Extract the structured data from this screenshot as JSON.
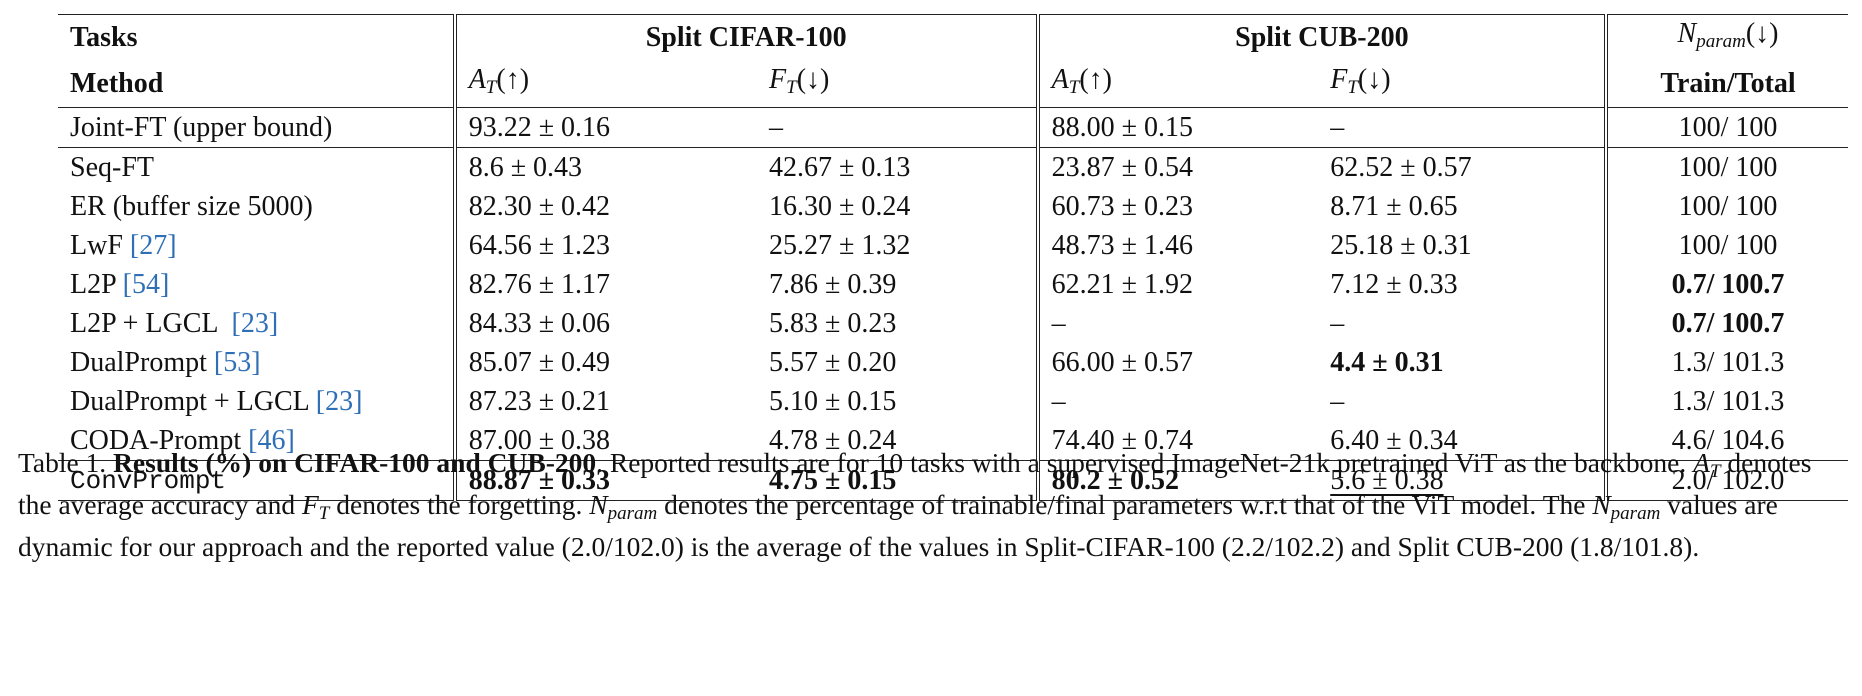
{
  "table": {
    "header1": {
      "tasks": "Tasks",
      "cifar": "Split CIFAR-100",
      "cub": "Split CUB-200",
      "nparam_base": "N",
      "nparam_sub": "param",
      "nparam_arrow": "(↓)"
    },
    "header2": {
      "method": "Method",
      "a_base": "A",
      "a_sub": "T",
      "a_arrow": "(↑)",
      "f_base": "F",
      "f_sub": "T",
      "f_arrow": "(↓)",
      "train_total": "Train/Total"
    },
    "rows": [
      {
        "method": "Joint-FT (upper bound)",
        "cite": "",
        "cifar_a": "93.22 ± 0.16",
        "cifar_f": "–",
        "cub_a": "88.00 ± 0.15",
        "cub_f": "–",
        "nparam": "100/ 100"
      },
      {
        "method": "Seq-FT",
        "cite": "",
        "cifar_a": "8.6 ± 0.43",
        "cifar_f": "42.67 ± 0.13",
        "cub_a": "23.87 ± 0.54",
        "cub_f": "62.52 ± 0.57",
        "nparam": "100/ 100"
      },
      {
        "method": "ER (buffer size 5000)",
        "cite": "",
        "cifar_a": "82.30 ± 0.42",
        "cifar_f": "16.30 ± 0.24",
        "cub_a": "60.73 ± 0.23",
        "cub_f": "8.71 ± 0.65",
        "nparam": "100/ 100"
      },
      {
        "method": "LwF ",
        "cite": "[27]",
        "cifar_a": "64.56 ± 1.23",
        "cifar_f": "25.27 ± 1.32",
        "cub_a": "48.73 ± 1.46",
        "cub_f": "25.18 ± 0.31",
        "nparam": "100/ 100"
      },
      {
        "method": "L2P ",
        "cite": "[54]",
        "cifar_a": "82.76 ± 1.17",
        "cifar_f": "7.86 ± 0.39",
        "cub_a": "62.21 ± 1.92",
        "cub_f": "7.12 ± 0.33",
        "nparam": "0.7/ 100.7"
      },
      {
        "method": "L2P + LGCL  ",
        "cite": "[23]",
        "cifar_a": "84.33 ± 0.06",
        "cifar_f": "5.83 ± 0.23",
        "cub_a": "–",
        "cub_f": "–",
        "nparam": "0.7/ 100.7"
      },
      {
        "method": "DualPrompt ",
        "cite": "[53]",
        "cifar_a": "85.07 ± 0.49",
        "cifar_f": "5.57 ± 0.20",
        "cub_a": "66.00 ± 0.57",
        "cub_f": "4.4 ± 0.31",
        "nparam": "1.3/ 101.3"
      },
      {
        "method": "DualPrompt + LGCL ",
        "cite": "[23]",
        "cifar_a": "87.23 ± 0.21",
        "cifar_f": "5.10 ± 0.15",
        "cub_a": "–",
        "cub_f": "–",
        "nparam": "1.3/ 101.3"
      },
      {
        "method": "CODA-Prompt ",
        "cite": "[46]",
        "cifar_a": "87.00 ± 0.38",
        "cifar_f": "4.78 ± 0.24",
        "cub_a": "74.40 ± 0.74",
        "cub_f": "6.40 ± 0.34",
        "nparam": "4.6/ 104.6"
      },
      {
        "method": "ConvPrompt",
        "cite": "",
        "cifar_a": "88.87 ± 0.33",
        "cifar_f": "4.75 ± 0.15",
        "cub_a": "80.2 ± 0.52",
        "cub_f": "5.6 ± 0.38",
        "nparam": "2.0/ 102.0"
      }
    ]
  },
  "caption": {
    "label": "Table 1. ",
    "bold": "Results (%) on CIFAR-100 and CUB-200",
    "s1": ". Reported results are for 10 tasks with a supervised ImageNet-21k pretrained ViT as the backbone. ",
    "a_base": "A",
    "a_sub": "T",
    "s2": " denotes the average accuracy and ",
    "f_base": "F",
    "f_sub": "T",
    "s3": " denotes the forgetting. ",
    "n_base": "N",
    "n_sub": "param",
    "s4": " denotes the percentage of trainable/final parameters w.r.t that of the ViT model. The ",
    "n2_base": "N",
    "n2_sub": "param",
    "s5": " values are dynamic for our approach and the reported value (2.0/102.0) is the average of the values in Split-CIFAR-100 (2.2/102.2) and Split CUB-200 (1.8/101.8)."
  }
}
